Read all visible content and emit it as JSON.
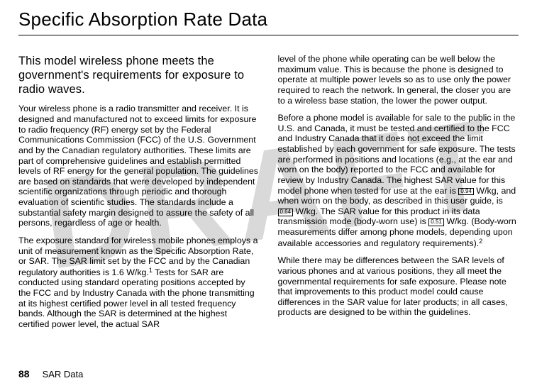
{
  "watermark": "DRAFT",
  "title": "Specific Absorption Rate Data",
  "lead": "This model wireless phone meets the government's requirements for exposure to radio waves.",
  "left": {
    "p1": "Your wireless phone is a radio transmitter and receiver. It is designed and manufactured not to exceed limits for exposure to radio frequency (RF) energy set by the Federal Communications Commission (FCC) of the U.S. Government and by the Canadian regulatory authorities. These limits are part of comprehensive guidelines and establish permitted levels of RF energy for the general population. The guidelines are based on standards that were developed by independent scientific organizations through periodic and thorough evaluation of scientific studies. The standards include a substantial safety margin designed to assure the safety of all persons, regardless of age or health.",
    "p2a": "The exposure standard for wireless mobile phones employs a unit of measurement known as the Specific Absorption Rate, or SAR. The SAR limit set by the FCC and by the Canadian regulatory authorities is 1.6 W/kg.",
    "p2b": " Tests for SAR are conducted using standard operating positions accepted by the FCC and by Industry Canada with the phone transmitting at its highest certified power level in all tested frequency bands. Although the SAR is determined at the highest certified power level, the actual SAR"
  },
  "right": {
    "p1": "level of the phone while operating can be well below the maximum value. This is because the phone is designed to operate at multiple power levels so as to use only the power required to reach the network. In general, the closer you are to a wireless base station, the lower the power output.",
    "p2a": "Before a phone model is available for sale to the public in the U.S. and Canada, it must be tested and certified to the FCC and Industry Canada that it does not exceed the limit established by each government for safe exposure. The tests are performed in positions and locations (e.g., at the ear and worn on the body) reported to the FCC and available for review by Industry Canada. The highest SAR value for this model phone when tested for use at the ear is ",
    "p2b": " W/kg, and when worn on the body, as described in this user guide, is ",
    "p2c": " W/kg. The SAR value for this product in its data transmission mode (body-worn use) is ",
    "p2d": " W/kg. (Body-worn measurements differ among phone models, depending upon available accessories and regulatory requirements).",
    "p3": "While there may be differences between the SAR levels of various phones and at various positions, they all meet the governmental requirements for safe exposure. Please note that improvements to this product model could cause differences in the SAR value for later products; in all cases, products are designed to be within the guidelines."
  },
  "sar": {
    "ear": "0.94",
    "body": "0.64",
    "data": "0.51"
  },
  "footnotes": {
    "fn1": "1",
    "fn2": "2"
  },
  "footer": {
    "page": "88",
    "section": "SAR Data"
  }
}
